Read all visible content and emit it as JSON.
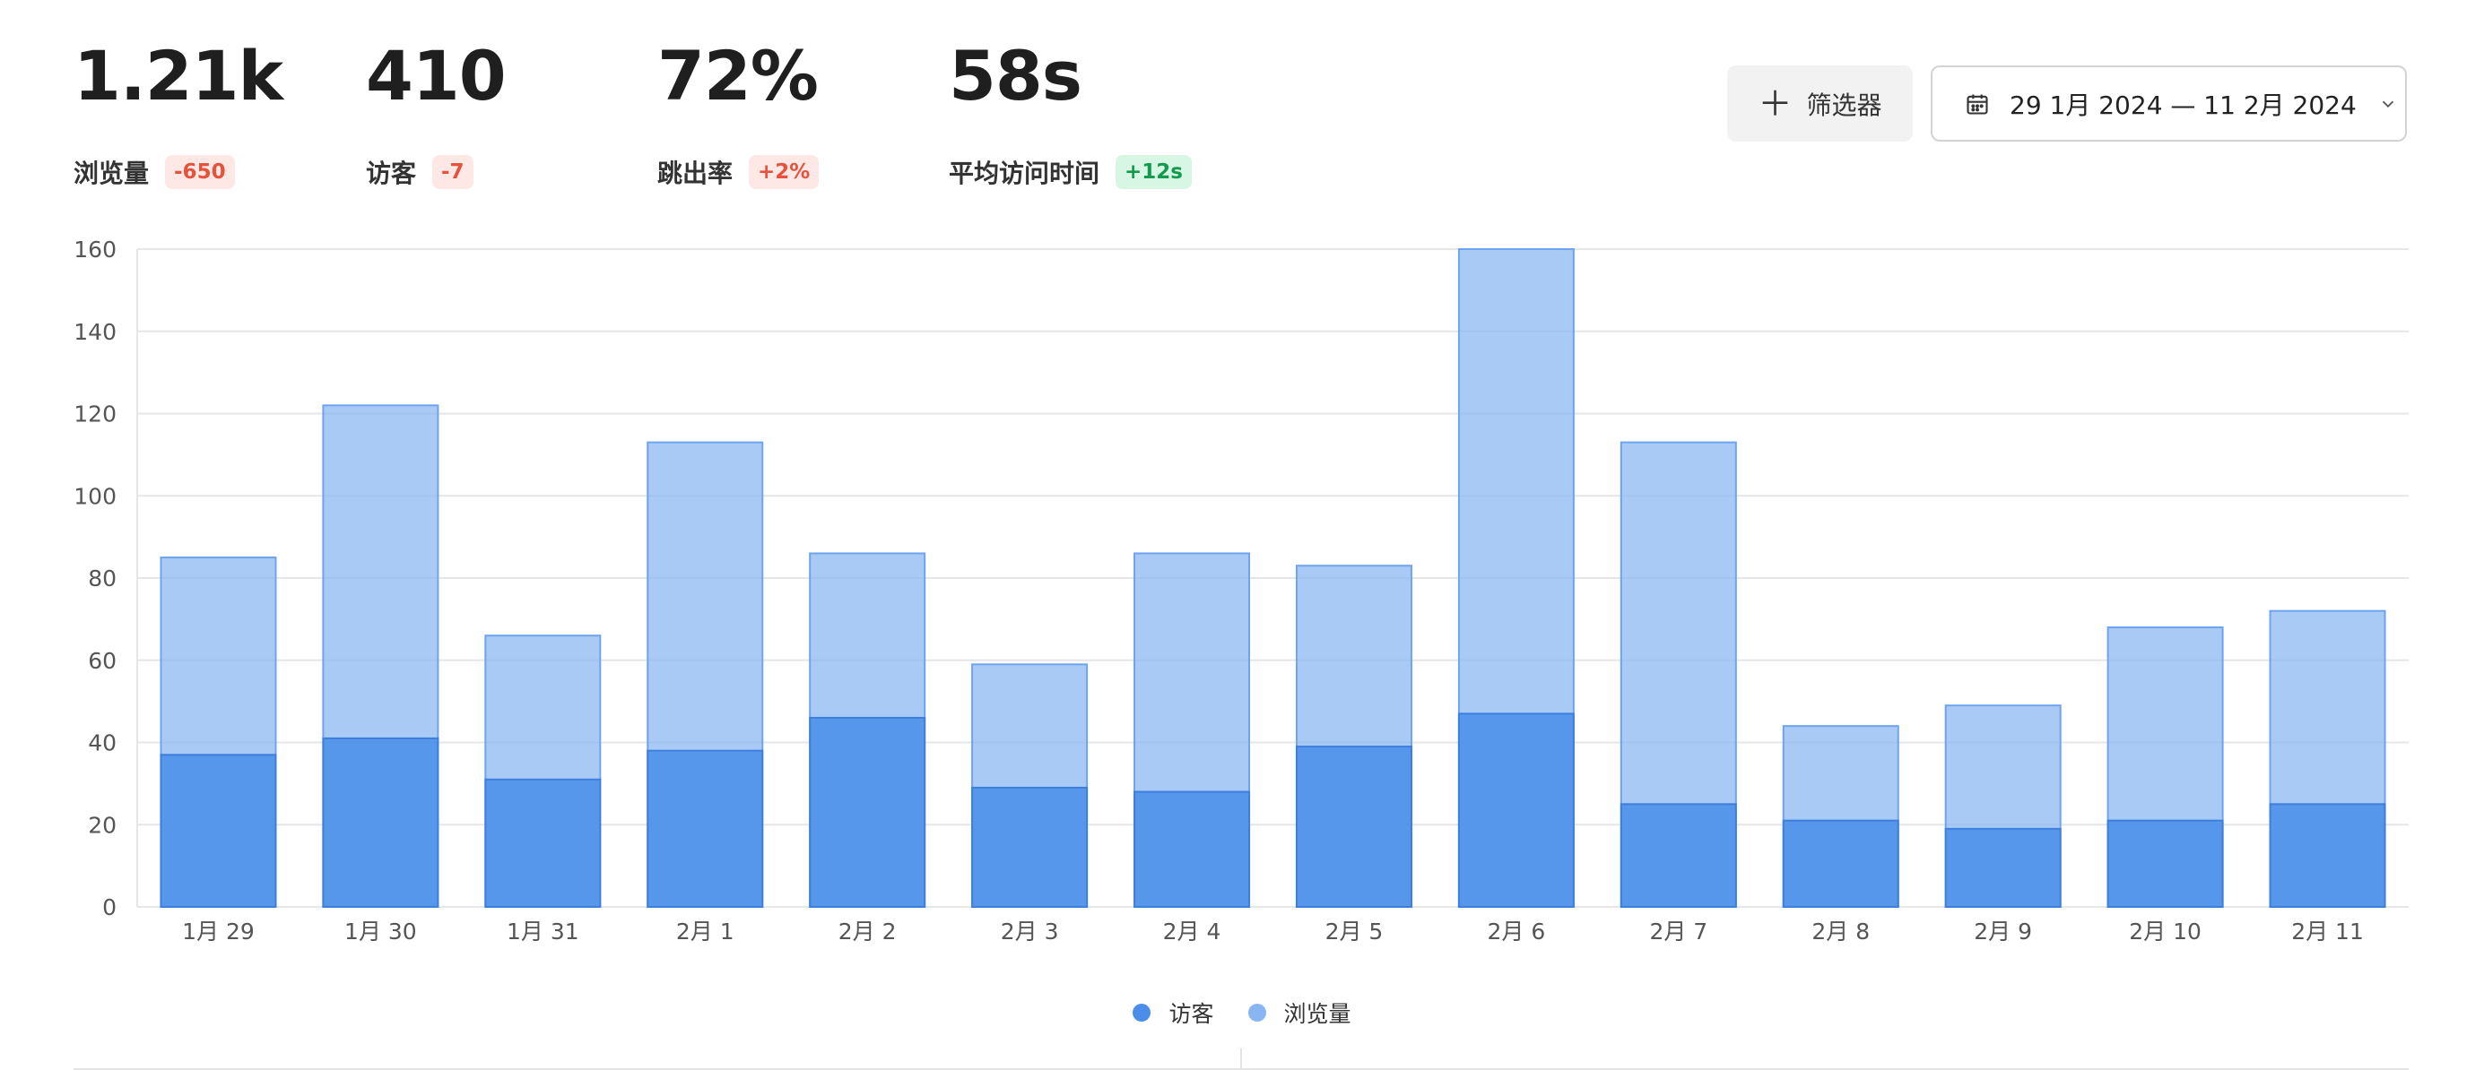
{
  "stats": [
    {
      "value": "1.21k",
      "label": "浏览量",
      "delta": "-650",
      "trend": "negative"
    },
    {
      "value": "410",
      "label": "访客",
      "delta": "-7",
      "trend": "negative"
    },
    {
      "value": "72%",
      "label": "跳出率",
      "delta": "+2%",
      "trend": "negative"
    },
    {
      "value": "58s",
      "label": "平均访问时间",
      "delta": "+12s",
      "trend": "positive"
    }
  ],
  "toolbar": {
    "filter_icon": "plus-icon",
    "filter_label": "筛选器",
    "date_icon": "calendar-icon",
    "date_range": "29 1月 2024 — 11 2月 2024",
    "date_chevron_icon": "chevron-down-icon"
  },
  "colors": {
    "visitors": "#4a8ee9",
    "pageviews": "#89b6f3",
    "negative": "#e5533d",
    "positive": "#139a4f"
  },
  "chart_data": {
    "type": "bar",
    "stacking": "overlay",
    "categories": [
      "1月 29",
      "1月 30",
      "1月 31",
      "2月 1",
      "2月 2",
      "2月 3",
      "2月 4",
      "2月 5",
      "2月 6",
      "2月 7",
      "2月 8",
      "2月 9",
      "2月 10",
      "2月 11"
    ],
    "series": [
      {
        "name": "访客",
        "color": "#4a8ee9",
        "values": [
          37,
          41,
          31,
          38,
          46,
          29,
          28,
          39,
          47,
          25,
          21,
          19,
          21,
          25
        ]
      },
      {
        "name": "浏览量",
        "color": "#89b6f3",
        "values": [
          85,
          122,
          66,
          113,
          86,
          59,
          86,
          83,
          160,
          113,
          44,
          49,
          68,
          72
        ]
      }
    ],
    "yticks": [
      0,
      20,
      40,
      60,
      80,
      100,
      120,
      140,
      160
    ],
    "ylim": [
      0,
      160
    ],
    "grid": true,
    "legend_position": "bottom-center"
  }
}
